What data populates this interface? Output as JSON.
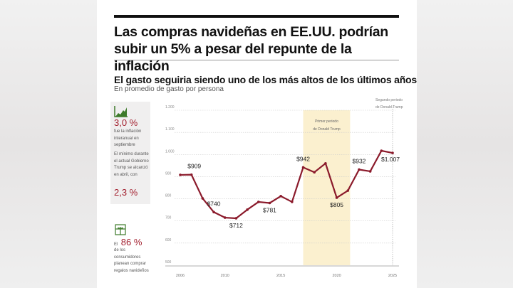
{
  "headline": "Las compras navideñas en EE.UU. podrían subir un 5% a pesar del repunte de la inflación",
  "subtitle": "El gasto seguiria siendo uno de los más altos de los últimos años",
  "subsubtitle": "En promedio de gasto por persona",
  "sidebar": {
    "stat1_icon": "rising-chart-icon",
    "stat1_value": "3,0 %",
    "stat1_text": "fue la inflación interanual en septiembre",
    "stat2_text": "El mínimo durante el actual Gobierno Trump se alcanzó en abril, con",
    "stat2_value": "2,3 %",
    "stat3_icon": "gift-icon",
    "stat3_prefix": "El",
    "stat3_value": "86 %",
    "stat3_text": "de los consumidores planean comprar regalos navideños"
  },
  "colors": {
    "line": "#8b1a2b",
    "accent": "#a3202f",
    "shade": "#fbf0cf",
    "icon": "#3d7a2a"
  },
  "chart_data": {
    "type": "line",
    "x": [
      2006,
      2007,
      2008,
      2009,
      2010,
      2011,
      2012,
      2013,
      2014,
      2015,
      2016,
      2017,
      2018,
      2019,
      2020,
      2021,
      2022,
      2023,
      2024,
      2025
    ],
    "values": [
      908,
      909,
      802,
      740,
      715,
      712,
      751,
      786,
      781,
      812,
      786,
      942,
      920,
      960,
      805,
      837,
      932,
      924,
      1017,
      1007
    ],
    "ylim": [
      500,
      1200
    ],
    "yticks": [
      {
        "v": 1200,
        "label": "1.200"
      },
      {
        "v": 1100,
        "label": "1.100"
      },
      {
        "v": 1000,
        "label": "1.000"
      },
      {
        "v": 900,
        "label": "900"
      },
      {
        "v": 800,
        "label": "800"
      },
      {
        "v": 700,
        "label": "700"
      },
      {
        "v": 600,
        "label": "600"
      },
      {
        "v": 500,
        "label": "500"
      }
    ],
    "xticks": [
      2006,
      2010,
      2015,
      2020,
      2025
    ],
    "grid": true,
    "data_labels": [
      {
        "x": 2007,
        "label": "$909"
      },
      {
        "x": 2009,
        "label": "$740"
      },
      {
        "x": 2011,
        "label": "$712"
      },
      {
        "x": 2014,
        "label": "$781"
      },
      {
        "x": 2017,
        "label": "$942"
      },
      {
        "x": 2020,
        "label": "$805"
      },
      {
        "x": 2022,
        "label": "$932"
      },
      {
        "x": 2025,
        "label": "$1.007"
      }
    ],
    "annotations": [
      {
        "text1": "Primer periodo",
        "text2": "de Donald Trump",
        "x_start": 2017,
        "x_end": 2021.2
      },
      {
        "text1": "Segundo periodo",
        "text2": "de Donald Trump",
        "x": 2025
      }
    ]
  }
}
